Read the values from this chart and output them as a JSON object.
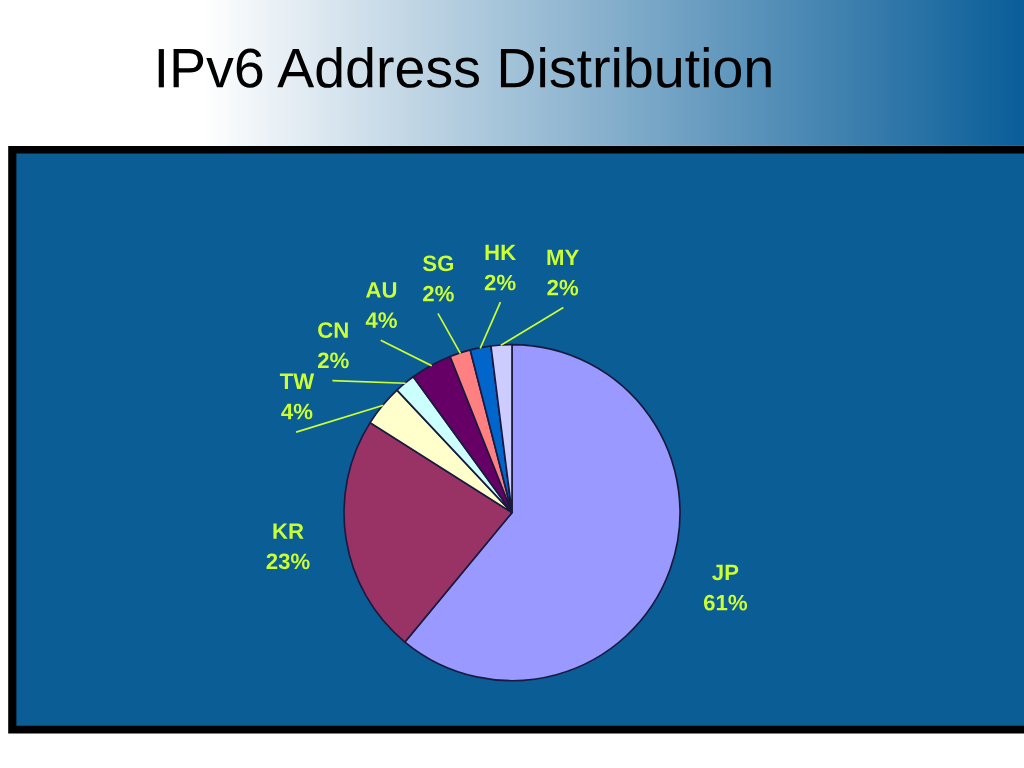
{
  "chart_data": {
    "type": "pie",
    "title": "IPv6 Address Distribution",
    "categories": [
      "JP",
      "KR",
      "TW",
      "CN",
      "AU",
      "SG",
      "HK",
      "MY"
    ],
    "values": [
      61,
      23,
      4,
      2,
      4,
      2,
      2,
      2
    ],
    "colors": [
      "#9999ff",
      "#993366",
      "#ffffcc",
      "#ccffff",
      "#660066",
      "#ff8080",
      "#0066cc",
      "#ccccff"
    ],
    "value_labels": [
      "61%",
      "23%",
      "4%",
      "2%",
      "4%",
      "2%",
      "2%",
      "2%"
    ],
    "legend": false
  }
}
